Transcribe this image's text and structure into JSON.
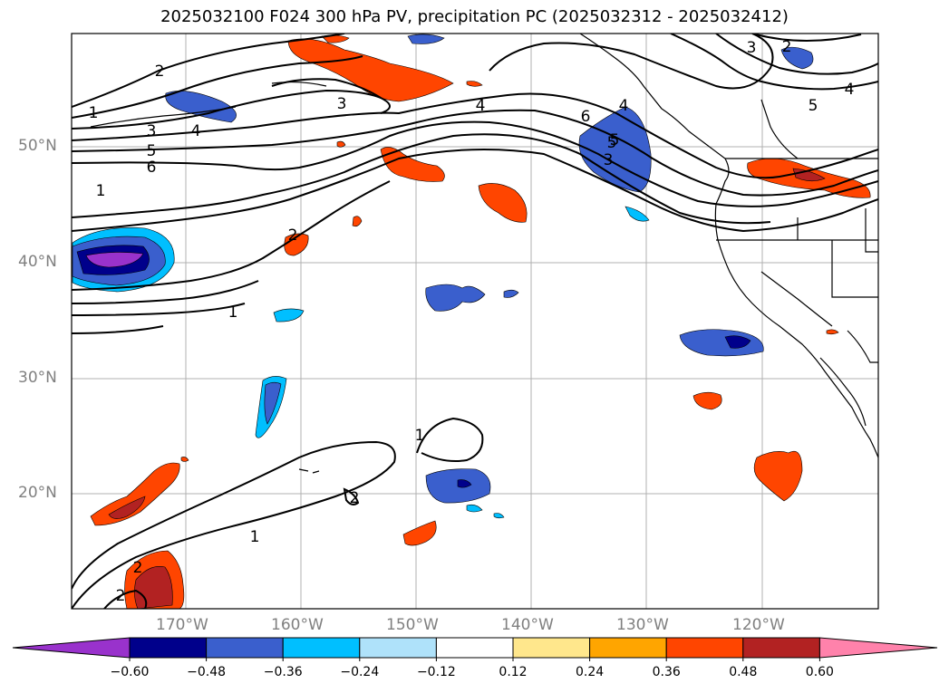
{
  "title": "2025032100 F024 300 hPa PV, precipitation PC (2025032312 - 2025032412)",
  "lat_labels": [
    "50°N",
    "40°N",
    "30°N",
    "20°N"
  ],
  "lon_labels": [
    "170°W",
    "160°W",
    "150°W",
    "140°W",
    "130°W",
    "120°W"
  ],
  "colorbar": {
    "colors": [
      "#9932cc",
      "#00008b",
      "#3a5fcd",
      "#00bfff",
      "#afe2fa",
      "#ffffff",
      "#ffe78c",
      "#ffa500",
      "#ff4500",
      "#b22222",
      "#ff82ab"
    ],
    "tick_labels": [
      "−0.60",
      "−0.48",
      "−0.36",
      "−0.24",
      "−0.12",
      "0.12",
      "0.24",
      "0.36",
      "0.48",
      "0.60"
    ]
  },
  "contour_labels": [
    "1",
    "2",
    "3",
    "4",
    "5",
    "6",
    "1",
    "2",
    "3",
    "4",
    "5",
    "6",
    "3",
    "4",
    "5",
    "2",
    "3",
    "1",
    "1",
    "2",
    "2",
    "1",
    "2",
    "4",
    "5"
  ]
}
